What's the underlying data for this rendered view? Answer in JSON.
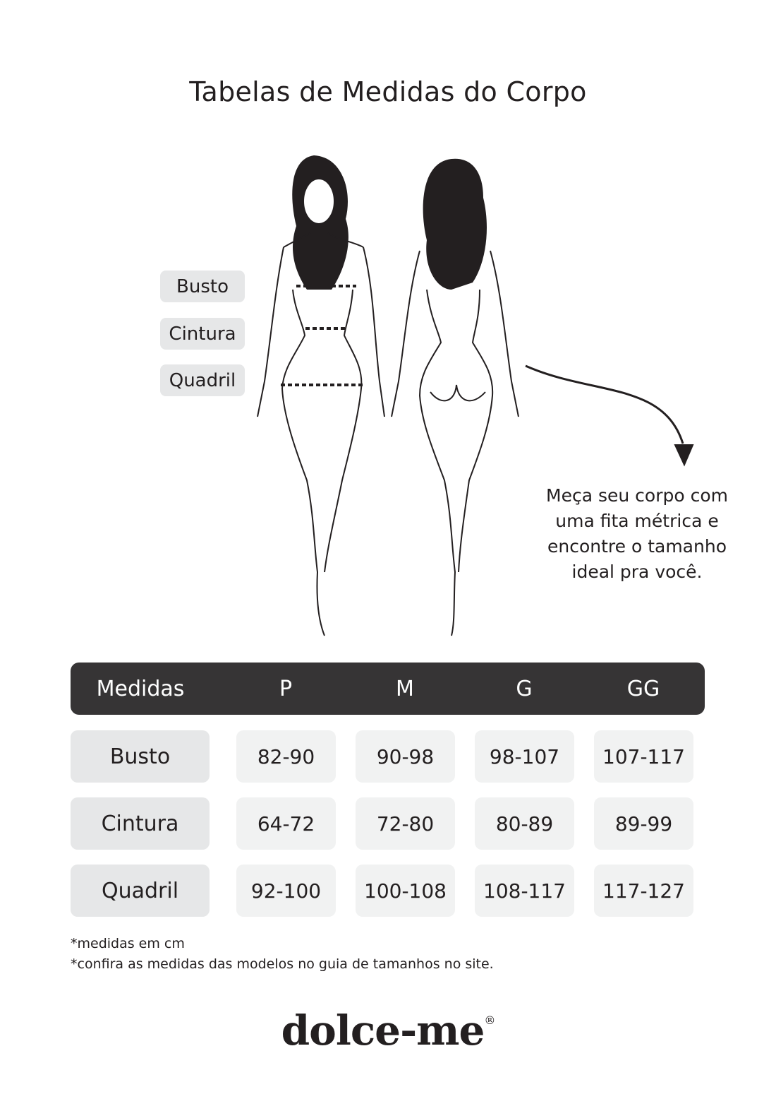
{
  "title": "Tabelas de Medidas do Corpo",
  "body_labels": [
    "Busto",
    "Cintura",
    "Quadril"
  ],
  "hint": [
    "Meça seu corpo com",
    "uma fita métrica e",
    "encontre o tamanho",
    "ideal pra você."
  ],
  "table": {
    "headers": [
      "Medidas",
      "P",
      "M",
      "G",
      "GG"
    ],
    "rows": [
      {
        "label": "Busto",
        "values": [
          "82-90",
          "90-98",
          "98-107",
          "107-117"
        ]
      },
      {
        "label": "Cintura",
        "values": [
          "64-72",
          "72-80",
          "80-89",
          "89-99"
        ]
      },
      {
        "label": "Quadril",
        "values": [
          "92-100",
          "100-108",
          "108-117",
          "117-127"
        ]
      }
    ]
  },
  "notes": [
    "*medidas em cm",
    "*confira as medidas das modelos no guia de tamanhos no site."
  ],
  "brand": {
    "name": "dolce-me",
    "mark": "®"
  },
  "colors": {
    "header_bg": "#363435",
    "label_cell": "#e6e7e8",
    "value_cell": "#f1f2f2",
    "text": "#231f20"
  }
}
